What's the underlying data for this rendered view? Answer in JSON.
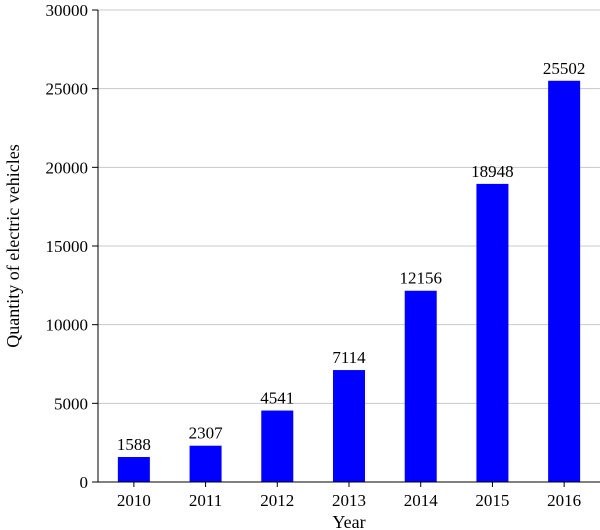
{
  "chart_data": {
    "type": "bar",
    "title": "",
    "xlabel": "Year",
    "ylabel": "Quantity of electric vehicles",
    "categories": [
      "2010",
      "2011",
      "2012",
      "2013",
      "2014",
      "2015",
      "2016"
    ],
    "values": [
      1588,
      2307,
      4541,
      7114,
      12156,
      18948,
      25502
    ],
    "data_labels": [
      "1588",
      "2307",
      "4541",
      "7114",
      "12156",
      "18948",
      "25502"
    ],
    "ylim": [
      0,
      30000
    ],
    "yticks": [
      0,
      5000,
      10000,
      15000,
      20000,
      25000,
      30000
    ],
    "ytick_labels": [
      "0",
      "5000",
      "10000",
      "15000",
      "20000",
      "25000",
      "30000"
    ],
    "grid": true,
    "legend": "none",
    "bar_color": "#0000ff",
    "grid_color": "#c8c8c8"
  }
}
